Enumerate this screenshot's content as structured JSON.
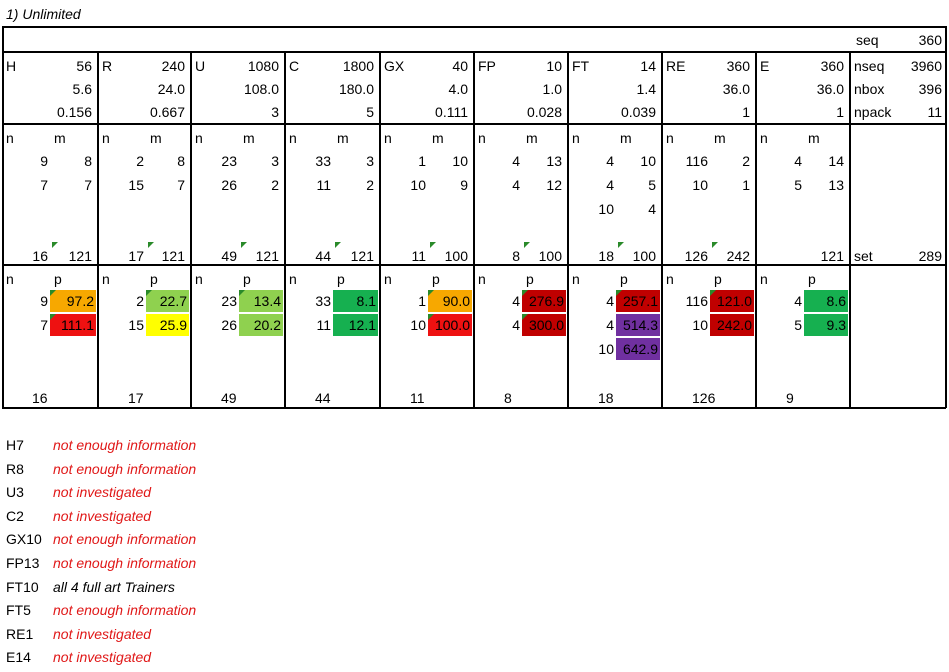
{
  "title": "1) Unlimited",
  "seq": {
    "label": "seq",
    "value": "360"
  },
  "columns": [
    {
      "code": "H",
      "v1": "56",
      "v2": "5.6",
      "v3": "0.156",
      "nm": [
        [
          "9",
          "8"
        ],
        [
          "7",
          "7"
        ]
      ],
      "set_n": "16",
      "set_m": "121",
      "np": [
        [
          "9",
          "97.2",
          "#f7a800"
        ],
        [
          "7",
          "111.1",
          "#ee1111"
        ]
      ],
      "n_total": "16"
    },
    {
      "code": "R",
      "v1": "240",
      "v2": "24.0",
      "v3": "0.667",
      "nm": [
        [
          "2",
          "8"
        ],
        [
          "15",
          "7"
        ]
      ],
      "set_n": "17",
      "set_m": "121",
      "np": [
        [
          "2",
          "22.7",
          "#8fd14f"
        ],
        [
          "15",
          "25.9",
          "#ffff00"
        ]
      ],
      "n_total": "17"
    },
    {
      "code": "U",
      "v1": "1080",
      "v2": "108.0",
      "v3": "3",
      "nm": [
        [
          "23",
          "3"
        ],
        [
          "26",
          "2"
        ]
      ],
      "set_n": "49",
      "set_m": "121",
      "np": [
        [
          "23",
          "13.4",
          "#8fd14f"
        ],
        [
          "26",
          "20.2",
          "#8fd14f"
        ]
      ],
      "n_total": "49"
    },
    {
      "code": "C",
      "v1": "1800",
      "v2": "180.0",
      "v3": "5",
      "nm": [
        [
          "33",
          "3"
        ],
        [
          "11",
          "2"
        ]
      ],
      "set_n": "44",
      "set_m": "121",
      "np": [
        [
          "33",
          "8.1",
          "#16b050"
        ],
        [
          "11",
          "12.1",
          "#16b050"
        ]
      ],
      "n_total": "44"
    },
    {
      "code": "GX",
      "v1": "40",
      "v2": "4.0",
      "v3": "0.111",
      "nm": [
        [
          "1",
          "10"
        ],
        [
          "10",
          "9"
        ]
      ],
      "set_n": "11",
      "set_m": "100",
      "np": [
        [
          "1",
          "90.0",
          "#f7a800"
        ],
        [
          "10",
          "100.0",
          "#ee1111"
        ]
      ],
      "n_total": "11"
    },
    {
      "code": "FP",
      "v1": "10",
      "v2": "1.0",
      "v3": "0.028",
      "nm": [
        [
          "4",
          "13"
        ],
        [
          "4",
          "12"
        ]
      ],
      "set_n": "8",
      "set_m": "100",
      "np": [
        [
          "4",
          "276.9",
          "#c00000"
        ],
        [
          "4",
          "300.0",
          "#c00000"
        ]
      ],
      "n_total": "8"
    },
    {
      "code": "FT",
      "v1": "14",
      "v2": "1.4",
      "v3": "0.039",
      "nm": [
        [
          "4",
          "10"
        ],
        [
          "4",
          "5"
        ],
        [
          "10",
          "4"
        ]
      ],
      "set_n": "18",
      "set_m": "100",
      "np": [
        [
          "4",
          "257.1",
          "#c00000"
        ],
        [
          "4",
          "514.3",
          "#7030a0"
        ],
        [
          "10",
          "642.9",
          "#7030a0"
        ]
      ],
      "n_total": "18"
    },
    {
      "code": "RE",
      "v1": "360",
      "v2": "36.0",
      "v3": "1",
      "nm": [
        [
          "116",
          "2"
        ],
        [
          "10",
          "1"
        ]
      ],
      "set_n": "126",
      "set_m": "242",
      "np": [
        [
          "116",
          "121.0",
          "#c00000"
        ],
        [
          "10",
          "242.0",
          "#c00000"
        ]
      ],
      "n_total": "126"
    },
    {
      "code": "E",
      "v1": "360",
      "v2": "36.0",
      "v3": "1",
      "nm": [
        [
          "4",
          "14"
        ],
        [
          "5",
          "13"
        ]
      ],
      "set_n": "",
      "set_m": "121",
      "np": [
        [
          "4",
          "8.6",
          "#16b050"
        ],
        [
          "5",
          "9.3",
          "#16b050"
        ]
      ],
      "n_total": "9"
    }
  ],
  "summary": {
    "nseq_label": "nseq",
    "nseq": "3960",
    "nbox_label": "nbox",
    "nbox": "396",
    "npack_label": "npack",
    "npack": "11",
    "set_label": "set",
    "set": "289"
  },
  "labels": {
    "n": "n",
    "m": "m",
    "p": "p"
  },
  "notes": [
    {
      "label": "H7",
      "text": "not enough information",
      "color": "red"
    },
    {
      "label": "R8",
      "text": "not enough information",
      "color": "red"
    },
    {
      "label": "U3",
      "text": "not investigated",
      "color": "red"
    },
    {
      "label": "C2",
      "text": "not investigated",
      "color": "red"
    },
    {
      "label": "GX10",
      "text": "not enough information",
      "color": "red"
    },
    {
      "label": "FP13",
      "text": "not enough information",
      "color": "red"
    },
    {
      "label": "FT10",
      "text": "all 4 full art Trainers",
      "color": "black"
    },
    {
      "label": "FT5",
      "text": "not enough information",
      "color": "red"
    },
    {
      "label": "RE1",
      "text": "not investigated",
      "color": "red"
    },
    {
      "label": "E14",
      "text": "not investigated",
      "color": "red"
    }
  ]
}
